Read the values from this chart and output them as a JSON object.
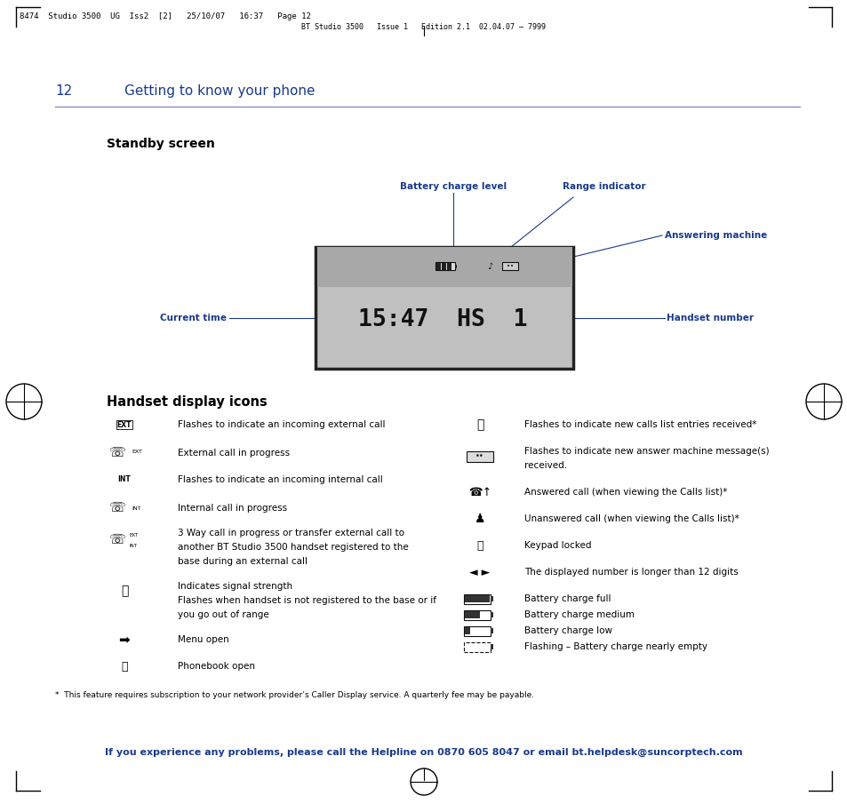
{
  "page_header_left": "8474  Studio 3500  UG  Iss2  [2]   25/10/07   16:37   Page 12",
  "page_header_center": "BT Studio 3500   Issue 1   Edition 2.1  02.04.07 – 7999",
  "page_num": "12",
  "section_title": "Getting to know your phone",
  "standby_title": "Standby screen",
  "handset_icons_title": "Handset display icons",
  "footnote": "*  This feature requires subscription to your network provider’s Caller Display service. A quarterly fee may be payable.",
  "footer": "If you experience any problems, please call the Helpline on 0870 605 8047 or email bt.helpdesk@suncorptech.com",
  "blue_color": "#1a3a8a",
  "line_color": "#7777bb",
  "bg_color": "#ffffff",
  "display_bg": "#c0c0c0",
  "display_dark_bg": "#a8a8a8",
  "display_border": "#222222",
  "text_color": "#000000"
}
